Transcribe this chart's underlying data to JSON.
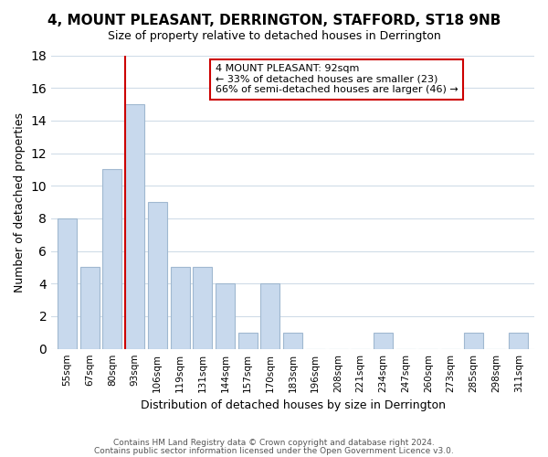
{
  "title": "4, MOUNT PLEASANT, DERRINGTON, STAFFORD, ST18 9NB",
  "subtitle": "Size of property relative to detached houses in Derrington",
  "xlabel": "Distribution of detached houses by size in Derrington",
  "ylabel": "Number of detached properties",
  "categories": [
    "55sqm",
    "67sqm",
    "80sqm",
    "93sqm",
    "106sqm",
    "119sqm",
    "131sqm",
    "144sqm",
    "157sqm",
    "170sqm",
    "183sqm",
    "196sqm",
    "208sqm",
    "221sqm",
    "234sqm",
    "247sqm",
    "260sqm",
    "273sqm",
    "285sqm",
    "298sqm",
    "311sqm"
  ],
  "values": [
    8,
    5,
    11,
    15,
    9,
    5,
    5,
    4,
    1,
    4,
    1,
    0,
    0,
    0,
    1,
    0,
    0,
    0,
    1,
    0,
    1
  ],
  "bar_color": "#c8d9ed",
  "bar_edge_color": "#a0b8d0",
  "vline_index": 3,
  "vline_color": "#cc0000",
  "annotation_title": "4 MOUNT PLEASANT: 92sqm",
  "annotation_line1": "← 33% of detached houses are smaller (23)",
  "annotation_line2": "66% of semi-detached houses are larger (46) →",
  "annotation_box_edge": "#cc0000",
  "ylim": [
    0,
    18
  ],
  "yticks": [
    0,
    2,
    4,
    6,
    8,
    10,
    12,
    14,
    16,
    18
  ],
  "footer1": "Contains HM Land Registry data © Crown copyright and database right 2024.",
  "footer2": "Contains public sector information licensed under the Open Government Licence v3.0.",
  "bg_color": "#ffffff",
  "grid_color": "#d0dce8"
}
